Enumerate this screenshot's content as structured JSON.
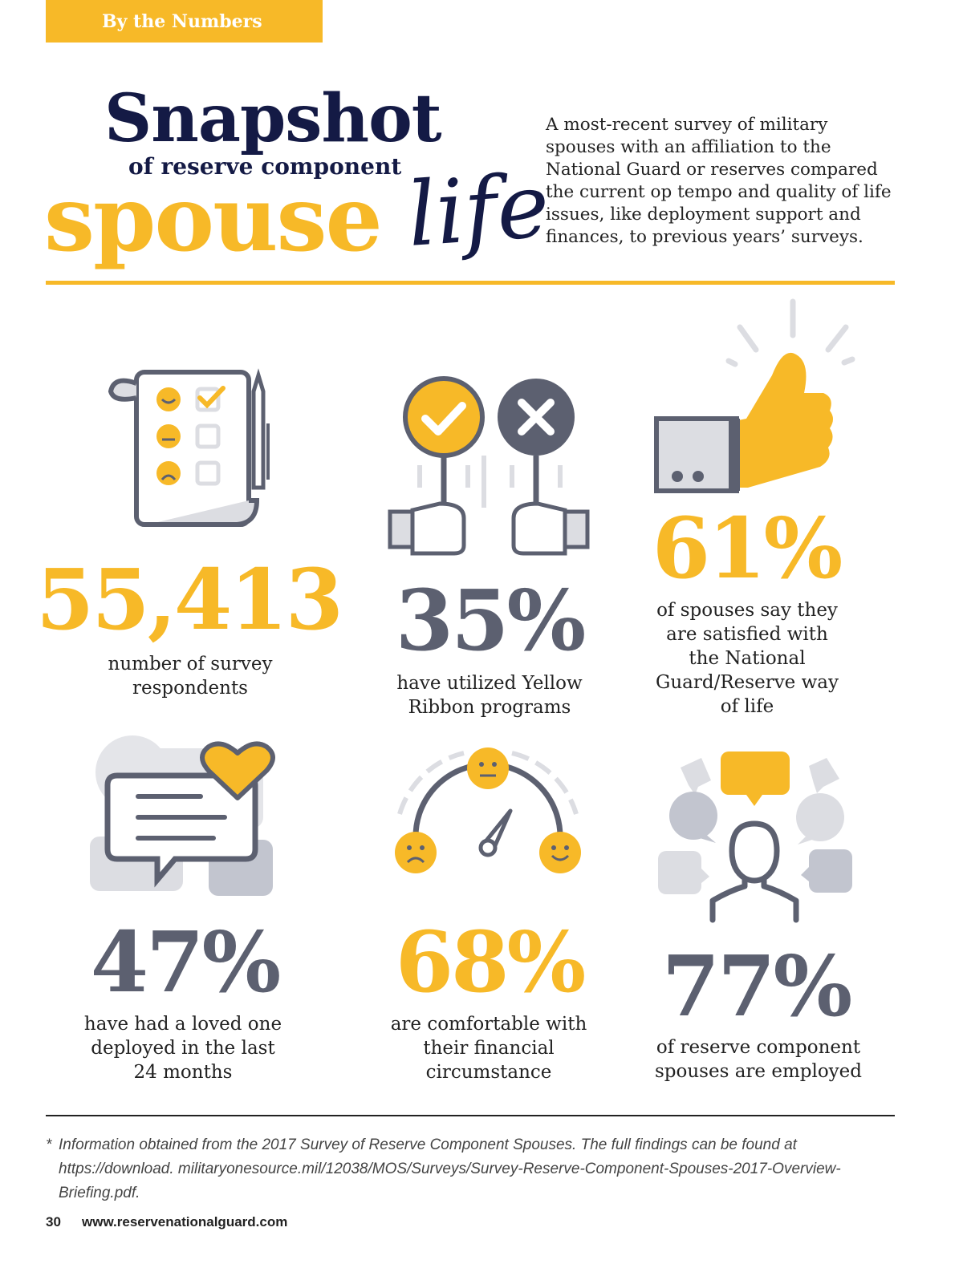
{
  "section_tab": "By the Numbers",
  "title": {
    "line1": "Snapshot",
    "line2": "of reserve component",
    "line3": "spouse",
    "script_word": "life"
  },
  "intro": "A most-recent survey of military spouses with an affiliation to the National Guard or reserves compared the current op tempo and quality of life issues, like deployment support and finances, to previous years’ surveys.",
  "stats": [
    {
      "value": "55,413",
      "caption": "number of survey respondents",
      "icon": "survey-checklist-icon"
    },
    {
      "value": "35%",
      "caption": "have utilized Yellow Ribbon programs",
      "icon": "yes-no-signs-icon"
    },
    {
      "value": "61%",
      "caption": "of spouses say they are satisfied with the National Guard/Reserve way of life",
      "icon": "thumbs-up-icon"
    },
    {
      "value": "47%",
      "caption": "have had a loved one deployed in the last 24 months",
      "icon": "message-heart-icon"
    },
    {
      "value": "68%",
      "caption": "are comfortable with their financial circumstance",
      "icon": "satisfaction-gauge-icon"
    },
    {
      "value": "77%",
      "caption": "of reserve component spouses are employed",
      "icon": "person-speech-bubbles-icon"
    }
  ],
  "colors": {
    "gold": "#f7b928",
    "navy": "#141a45",
    "slate": "#5c6070",
    "light_gray": "#dcdde2"
  },
  "footnote": {
    "marker": "*",
    "text": "Information obtained from the 2017 Survey of Reserve Component Spouses. The full findings can be found at https://download. militaryonesource.mil/12038/MOS/Surveys/Survey-Reserve-Component-Spouses-2017-Overview-Briefing.pdf."
  },
  "page_number": "30",
  "website": "www.reservenationalguard.com"
}
